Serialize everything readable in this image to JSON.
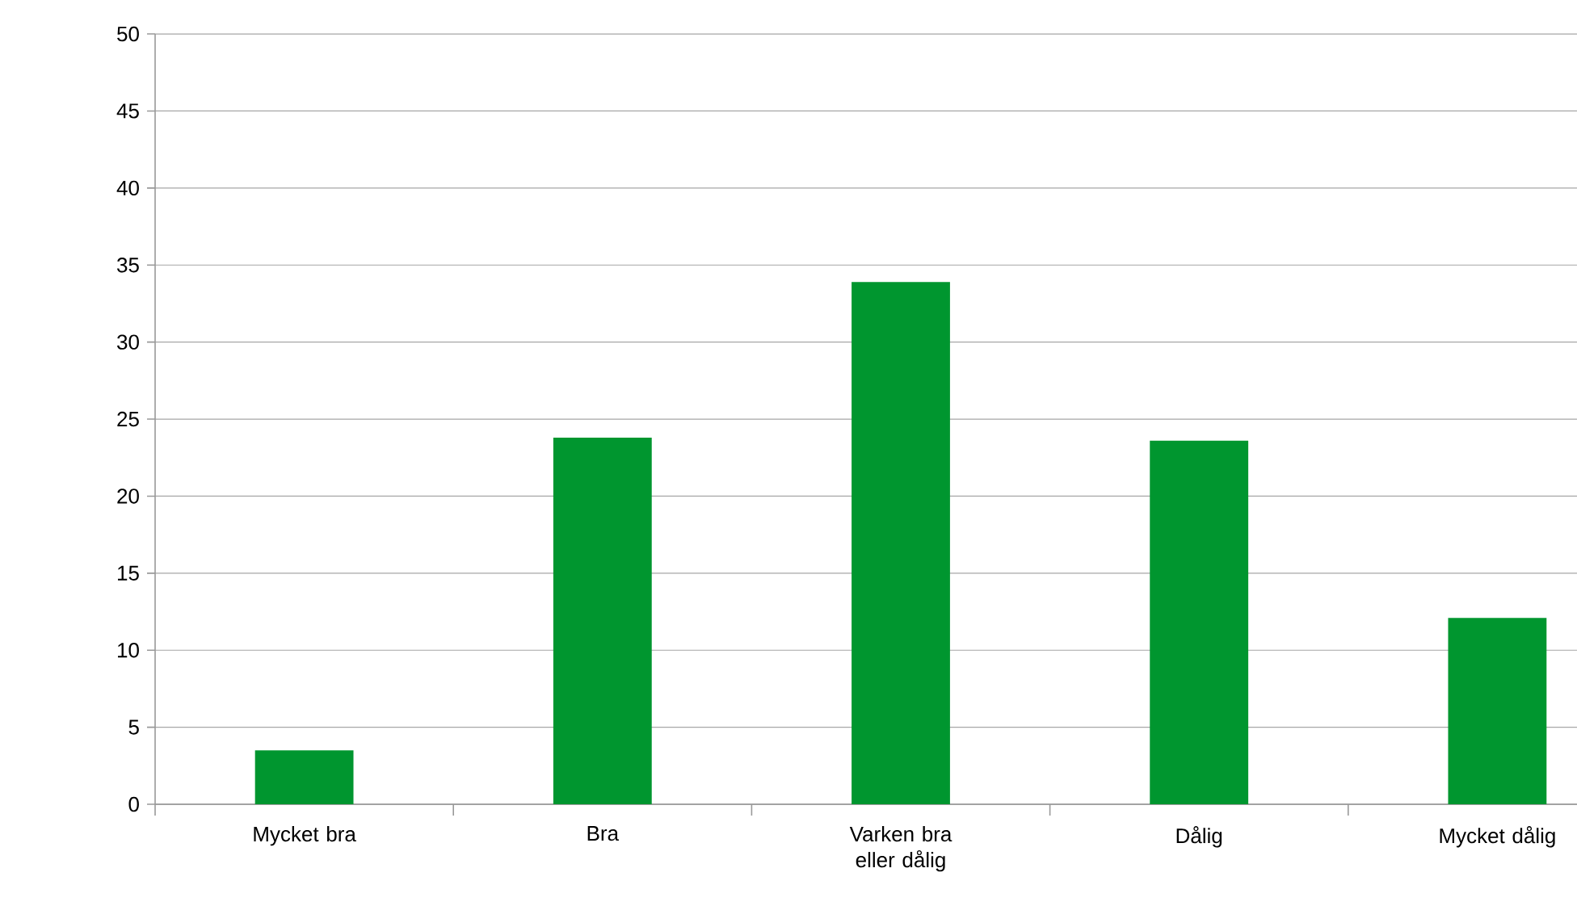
{
  "chart_data": {
    "type": "bar",
    "categories": [
      "Mycket bra",
      "Bra",
      "Varken bra eller dålig",
      "Dålig",
      "Mycket dålig"
    ],
    "values": [
      3.5,
      23.8,
      33.9,
      23.6,
      12.1
    ],
    "color": "#00962f",
    "ylim": [
      0,
      50
    ],
    "yticks": [
      0,
      5,
      10,
      15,
      20,
      25,
      30,
      35,
      40,
      45,
      50
    ],
    "grid": "y"
  }
}
